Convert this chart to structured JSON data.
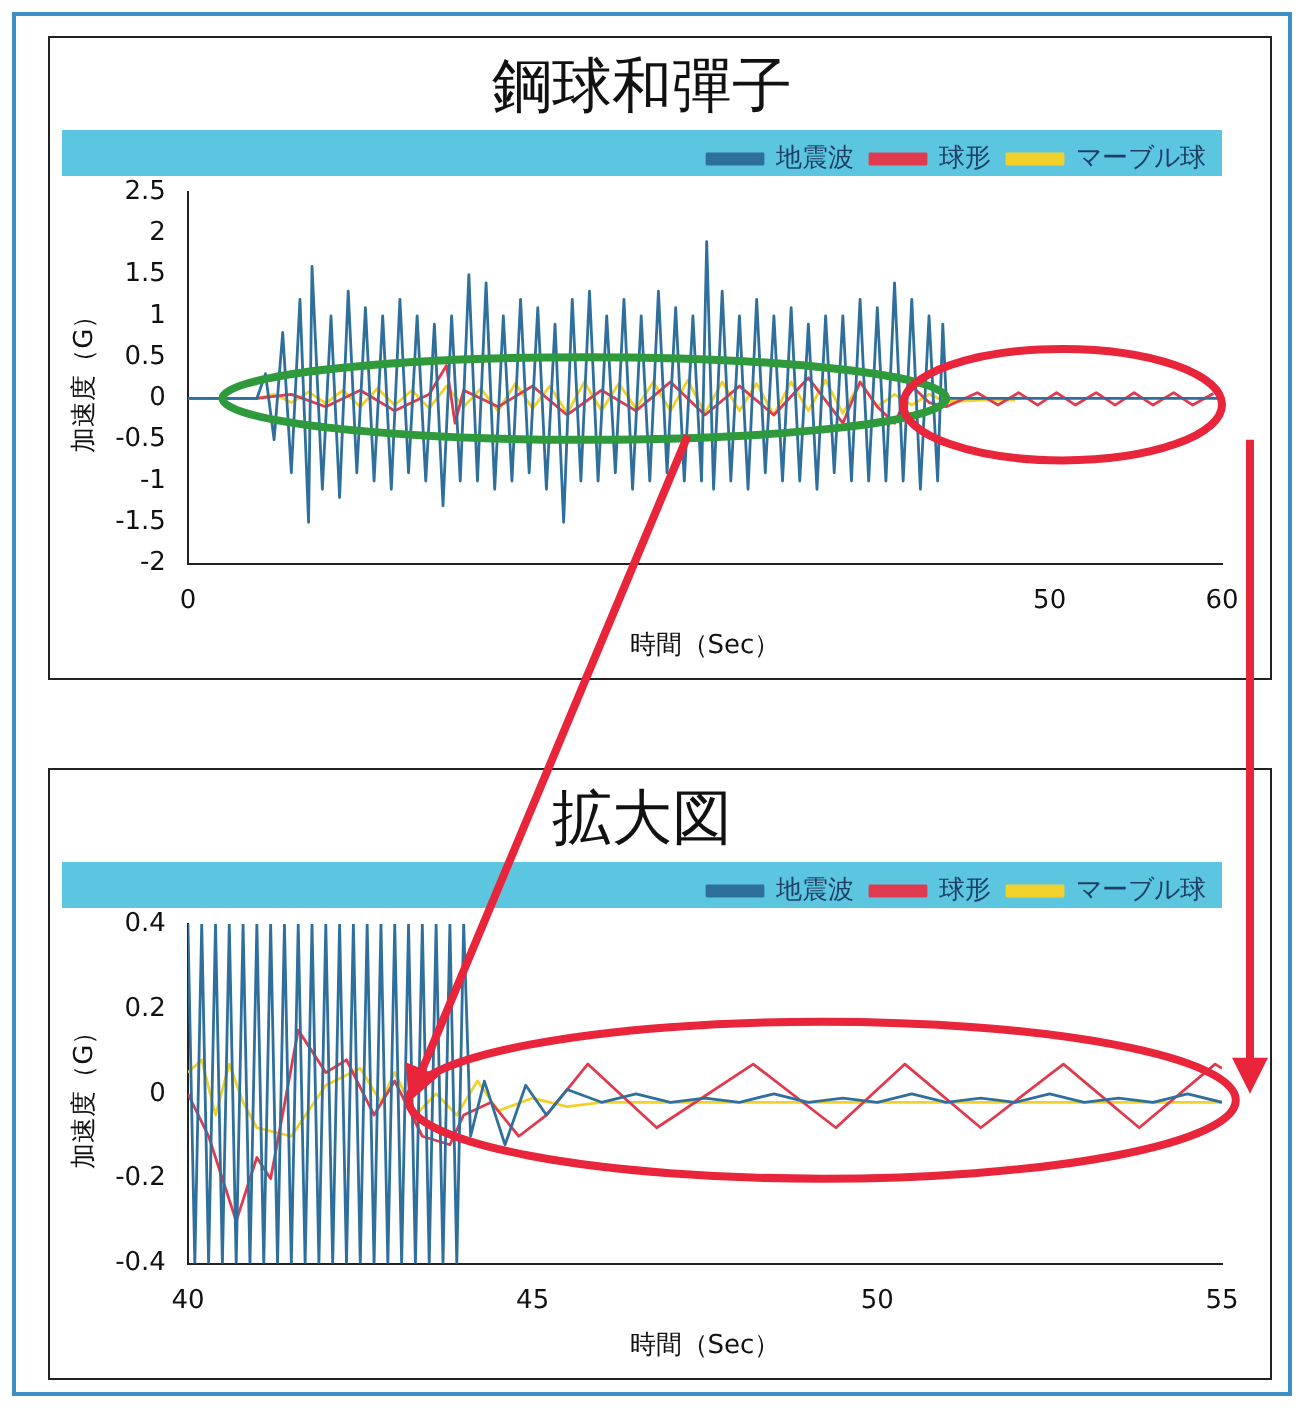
{
  "chart_data": [
    {
      "type": "line",
      "title": "鋼球和彈子",
      "xlabel": "時間（Sec）",
      "ylabel": "加速度（G）",
      "xlim": [
        0,
        60
      ],
      "xticks": [
        0,
        50,
        60
      ],
      "ylim": [
        -2,
        2.5
      ],
      "yticks": [
        -2,
        -1.5,
        -1,
        -0.5,
        0,
        0.5,
        1,
        1.5,
        2,
        2.5
      ],
      "legend": "top right",
      "series": [
        {
          "name": "地震波",
          "color": "#2f6f9c",
          "x": [
            0,
            4,
            4.5,
            5,
            5.5,
            6,
            6.5,
            7,
            7.2,
            7.8,
            8.3,
            8.8,
            9.3,
            9.8,
            10.3,
            10.8,
            11.3,
            11.8,
            12.3,
            12.8,
            13.3,
            13.8,
            14.3,
            14.8,
            15.3,
            15.8,
            16.3,
            16.8,
            17.3,
            17.8,
            18.3,
            18.8,
            19.3,
            19.8,
            20.3,
            20.8,
            21.3,
            21.8,
            22.3,
            22.8,
            23.3,
            23.8,
            24.3,
            24.8,
            25.3,
            25.8,
            26.3,
            26.8,
            27.3,
            27.8,
            28.3,
            28.8,
            29.3,
            29.8,
            30.1,
            30.5,
            31,
            31.5,
            32,
            32.5,
            33,
            33.5,
            34,
            34.5,
            35,
            35.5,
            36,
            36.5,
            37,
            37.5,
            38,
            38.5,
            39,
            39.5,
            40,
            40.5,
            41,
            41.5,
            42,
            42.5,
            43,
            43.5,
            43.8,
            44,
            60
          ],
          "values": [
            0,
            0,
            0.3,
            -0.5,
            0.8,
            -0.9,
            1.2,
            -1.5,
            1.6,
            -1.1,
            1.0,
            -1.2,
            1.3,
            -0.9,
            1.1,
            -1.0,
            1.0,
            -1.1,
            1.2,
            -0.9,
            1.0,
            -1.0,
            0.9,
            -1.3,
            1.0,
            -1.0,
            1.5,
            -1.0,
            1.4,
            -1.1,
            1.0,
            -1.0,
            1.2,
            -0.9,
            1.1,
            -1.1,
            0.9,
            -1.5,
            1.2,
            -1.0,
            1.3,
            -1.0,
            1.0,
            -0.9,
            1.2,
            -1.1,
            1.0,
            -1.0,
            1.3,
            -0.9,
            1.1,
            -1.0,
            1.0,
            -1.0,
            1.9,
            -1.1,
            1.3,
            -1.0,
            1.0,
            -1.1,
            1.2,
            -0.9,
            1.0,
            -1.0,
            1.1,
            -1.0,
            0.9,
            -1.1,
            1.0,
            -0.9,
            1.0,
            -1.0,
            1.2,
            -1.0,
            1.1,
            -1.0,
            1.4,
            -1.0,
            1.2,
            -1.1,
            1.0,
            -1.0,
            0.9,
            0,
            0
          ]
        },
        {
          "name": "球形",
          "color": "#e03a4e",
          "x": [
            0,
            4,
            6,
            8,
            10,
            12,
            14,
            15,
            15.5,
            16,
            18,
            20,
            22,
            24,
            26,
            28,
            30,
            32,
            34,
            36,
            38,
            39,
            40,
            41,
            42,
            43,
            44,
            45.8,
            47,
            48.2,
            49.3,
            50.4,
            51.5,
            52.7,
            53.8,
            54.9,
            56,
            57.2,
            58.3,
            59.5
          ],
          "values": [
            0,
            0,
            0.05,
            -0.1,
            0.1,
            -0.15,
            0.05,
            0.4,
            -0.3,
            0.1,
            -0.1,
            0.15,
            -0.2,
            0.1,
            -0.15,
            0.2,
            -0.2,
            0.15,
            -0.2,
            0.25,
            -0.3,
            0.2,
            -0.1,
            -0.3,
            0.15,
            -0.05,
            -0.1,
            0.07,
            -0.08,
            0.07,
            -0.08,
            0.07,
            -0.08,
            0.07,
            -0.08,
            0.07,
            -0.08,
            0.07,
            -0.08,
            0.06
          ]
        },
        {
          "name": "マーブル球",
          "color": "#f2d12a",
          "x": [
            0,
            4,
            5,
            6,
            7,
            8,
            9,
            10,
            11,
            12,
            13,
            14,
            15,
            16,
            17,
            18,
            19,
            20,
            21,
            22,
            23,
            24,
            25,
            26,
            27,
            28,
            29,
            30,
            31,
            32,
            33,
            34,
            35,
            36,
            37,
            38,
            39,
            40,
            41,
            42,
            43,
            44,
            46,
            48
          ],
          "values": [
            0,
            0,
            0.05,
            -0.05,
            0.08,
            -0.06,
            0.1,
            -0.1,
            0.12,
            -0.08,
            0.1,
            -0.12,
            0.15,
            -0.1,
            0.12,
            -0.15,
            0.18,
            -0.12,
            0.15,
            -0.18,
            0.2,
            -0.15,
            0.18,
            -0.12,
            0.2,
            -0.15,
            0.22,
            -0.18,
            0.2,
            -0.15,
            0.18,
            -0.2,
            0.2,
            -0.15,
            0.22,
            -0.18,
            0.2,
            -0.1,
            0.05,
            -0.08,
            0.05,
            -0.04,
            -0.02,
            -0.02
          ]
        }
      ]
    },
    {
      "type": "line",
      "title": "拡大図",
      "xlabel": "時間（Sec）",
      "ylabel": "加速度（G）",
      "xlim": [
        40,
        55
      ],
      "xticks": [
        40,
        45,
        50,
        55
      ],
      "ylim": [
        -0.4,
        0.4
      ],
      "yticks": [
        -0.4,
        -0.2,
        0,
        0.2,
        0.4
      ],
      "legend": "top right",
      "series": [
        {
          "name": "地震波",
          "color": "#2f6f9c",
          "x": [
            40,
            40.1,
            40.2,
            40.3,
            40.4,
            40.5,
            40.6,
            40.7,
            40.8,
            40.9,
            41,
            41.1,
            41.2,
            41.3,
            41.4,
            41.5,
            41.6,
            41.7,
            41.8,
            41.9,
            42,
            42.1,
            42.2,
            42.3,
            42.4,
            42.5,
            42.6,
            42.7,
            42.8,
            42.9,
            43,
            43.1,
            43.2,
            43.3,
            43.4,
            43.5,
            43.6,
            43.7,
            43.8,
            43.9,
            44,
            44.1,
            44.3,
            44.6,
            44.9,
            45.2,
            45.5,
            46,
            46.5,
            47,
            47.5,
            48,
            48.5,
            49,
            49.5,
            50,
            50.5,
            51,
            51.5,
            52,
            52.5,
            53,
            53.5,
            54,
            54.5,
            55
          ],
          "values": [
            0.4,
            -0.4,
            0.4,
            -0.4,
            0.4,
            -0.4,
            0.4,
            -0.4,
            0.4,
            -0.4,
            0.4,
            -0.4,
            0.4,
            -0.4,
            0.4,
            -0.4,
            0.4,
            -0.4,
            0.4,
            -0.4,
            0.4,
            -0.4,
            0.4,
            -0.4,
            0.4,
            -0.4,
            0.4,
            -0.4,
            0.4,
            -0.4,
            0.4,
            -0.4,
            0.4,
            -0.4,
            0.4,
            -0.4,
            0.4,
            -0.4,
            0.4,
            -0.4,
            0.4,
            -0.1,
            0.03,
            -0.12,
            0.02,
            -0.05,
            0.01,
            -0.02,
            0,
            -0.02,
            -0.01,
            -0.02,
            0,
            -0.02,
            -0.01,
            -0.02,
            0,
            -0.02,
            -0.01,
            -0.02,
            0,
            -0.02,
            -0.01,
            -0.02,
            0,
            -0.02
          ]
        },
        {
          "name": "球形",
          "color": "#e03a4e",
          "x": [
            40,
            40.3,
            40.7,
            41,
            41.2,
            41.6,
            42,
            42.3,
            42.7,
            43,
            43.4,
            43.8,
            44,
            44.4,
            44.8,
            45.2,
            45.8,
            46.8,
            48.2,
            49.4,
            50.4,
            51.5,
            52.7,
            53.8,
            54.9,
            55
          ],
          "values": [
            0,
            -0.1,
            -0.3,
            -0.15,
            -0.2,
            0.15,
            0.05,
            0.08,
            -0.05,
            0.03,
            -0.1,
            -0.12,
            -0.05,
            -0.02,
            -0.1,
            -0.05,
            0.07,
            -0.08,
            0.07,
            -0.08,
            0.07,
            -0.08,
            0.07,
            -0.08,
            0.07,
            0.06
          ]
        },
        {
          "name": "マーブル球",
          "color": "#f2d12a",
          "x": [
            40,
            40.2,
            40.4,
            40.6,
            40.8,
            41,
            41.5,
            42,
            42.5,
            42.8,
            43,
            43.3,
            43.6,
            43.9,
            44.2,
            44.5,
            45,
            45.5,
            46,
            55
          ],
          "values": [
            0.05,
            0.08,
            -0.05,
            0.07,
            -0.02,
            -0.08,
            -0.1,
            0.02,
            0.06,
            -0.02,
            0.05,
            -0.05,
            0,
            -0.05,
            0.03,
            -0.04,
            -0.01,
            -0.03,
            -0.02,
            -0.02
          ]
        }
      ]
    }
  ]
}
